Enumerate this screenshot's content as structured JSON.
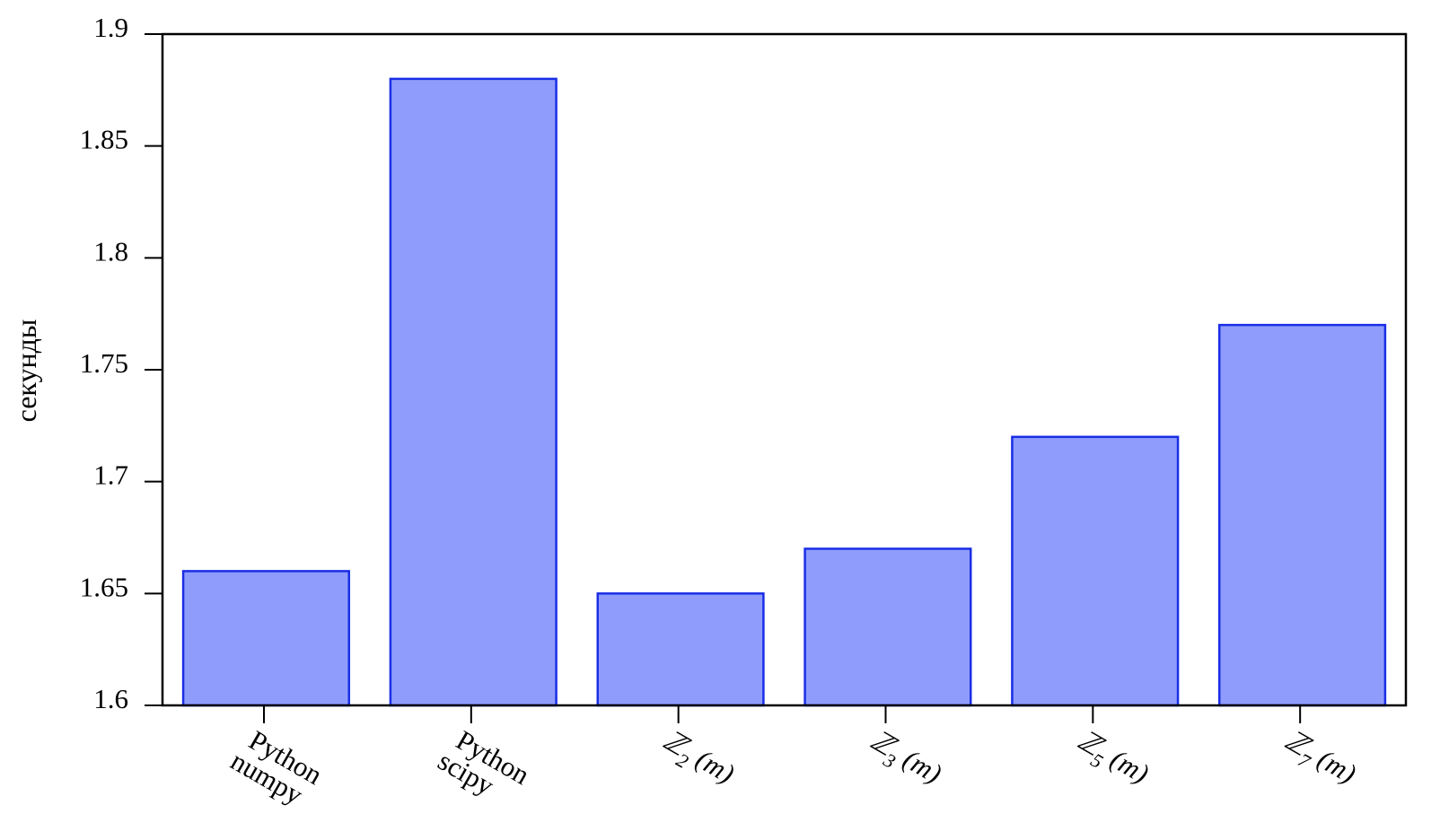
{
  "chart_data": {
    "type": "bar",
    "title": "",
    "xlabel": "",
    "ylabel": "секунды",
    "ylim": [
      1.6,
      1.9
    ],
    "yticks": [
      "1.6",
      "1.65",
      "1.7",
      "1.75",
      "1.8",
      "1.85",
      "1.9"
    ],
    "grid": false,
    "categories": [
      {
        "lines": [
          "Python",
          "numpy"
        ]
      },
      {
        "lines": [
          "Python",
          "scipy"
        ]
      },
      {
        "lines": [
          "ℤ",
          "2",
          " (m)"
        ],
        "math": true
      },
      {
        "lines": [
          "ℤ",
          "3",
          " (m)"
        ],
        "math": true
      },
      {
        "lines": [
          "ℤ",
          "5",
          " (m)"
        ],
        "math": true
      },
      {
        "lines": [
          "ℤ",
          "7",
          " (m)"
        ],
        "math": true
      }
    ],
    "category_text": [
      "Python numpy",
      "Python scipy",
      "ℤ2 (m)",
      "ℤ3 (m)",
      "ℤ5 (m)",
      "ℤ7 (m)"
    ],
    "values": [
      1.66,
      1.88,
      1.65,
      1.67,
      1.72,
      1.77
    ],
    "colors": {
      "bar_fill": "#8f9cfb",
      "bar_stroke": "#1a2ee6",
      "axis": "#000000"
    }
  }
}
